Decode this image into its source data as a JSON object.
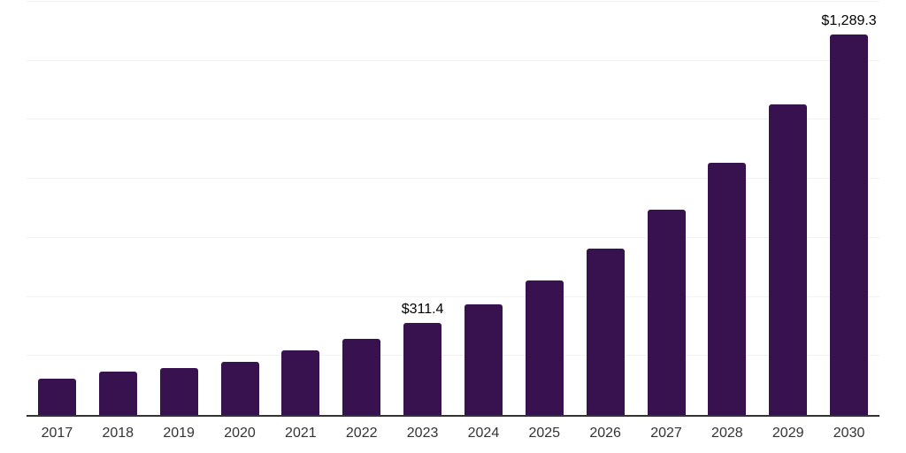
{
  "chart_data": {
    "type": "bar",
    "title": "",
    "xlabel": "",
    "ylabel": "",
    "categories": [
      "2017",
      "2018",
      "2019",
      "2020",
      "2021",
      "2022",
      "2023",
      "2024",
      "2025",
      "2026",
      "2027",
      "2028",
      "2029",
      "2030"
    ],
    "values": [
      123,
      147,
      160,
      180,
      219,
      258,
      311.4,
      376,
      455,
      565,
      697,
      855,
      1052,
      1289.3
    ],
    "value_labels": [
      "",
      "",
      "",
      "",
      "",
      "",
      "$311.4",
      "",
      "",
      "",
      "",
      "",
      "",
      "$1,289.3"
    ],
    "ylim": [
      0,
      1400
    ],
    "gridline_step": 200,
    "grid": true,
    "legend": "none",
    "y_axis_labels_visible": false,
    "colors": {
      "bar": "#38124f",
      "axis_line": "#333333",
      "gridline": "#f2f2f2",
      "tick_label": "#333333",
      "value_label": "#000000",
      "background": "#ffffff"
    }
  }
}
